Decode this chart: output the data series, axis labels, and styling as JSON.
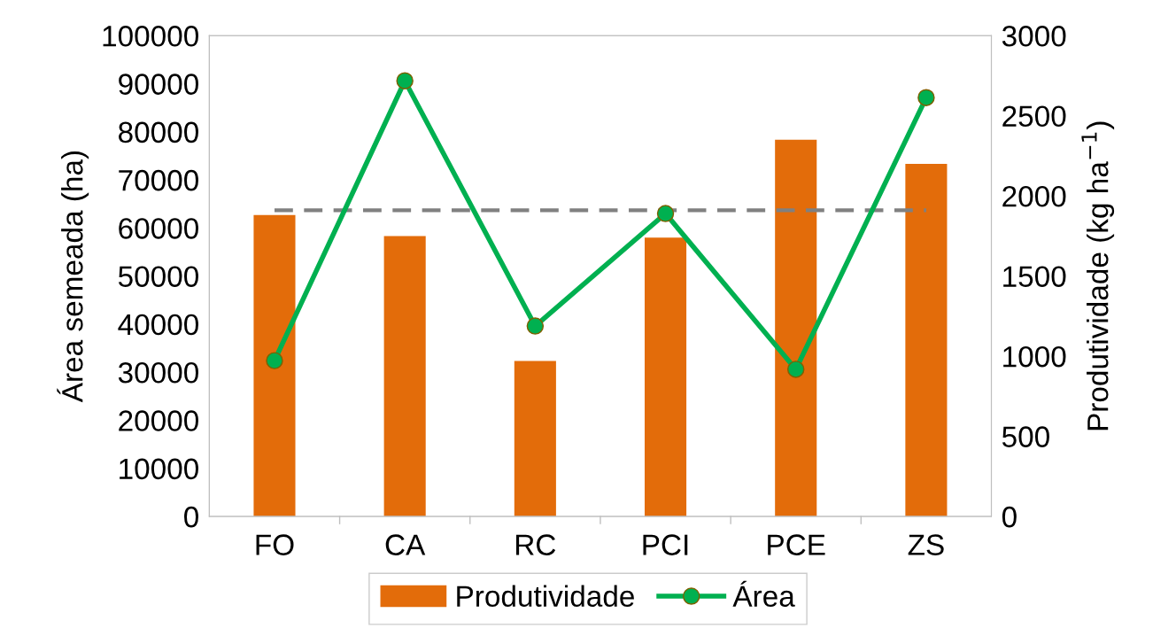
{
  "chart_data": {
    "type": "bar",
    "categories": [
      "FO",
      "CA",
      "RC",
      "PCI",
      "PCE",
      "ZS"
    ],
    "ylabel": "Área semeada (ha)",
    "y2label": "Produtividade (kg ha$^{−1}$)",
    "ylim": [
      0,
      100000
    ],
    "yticks": [
      0,
      10000,
      20000,
      30000,
      40000,
      50000,
      60000,
      70000,
      80000,
      90000,
      100000
    ],
    "y2lim": [
      0,
      3000
    ],
    "y2ticks": [
      0,
      500,
      1000,
      1500,
      2000,
      2500,
      3000
    ],
    "series": [
      {
        "name": "Produtividade",
        "axis": "y2",
        "color": "#e36c0a",
        "values": [
          1880,
          1750,
          970,
          1740,
          2350,
          2200
        ]
      },
      {
        "name": "Área",
        "type": "line",
        "axis": "y",
        "color": "#00b050",
        "marker": "circle",
        "values": [
          32400,
          90600,
          39600,
          63000,
          30600,
          87100
        ]
      }
    ],
    "ref_lines": [
      {
        "axis": "y2",
        "value": 1910,
        "color": "#808080",
        "line_style": "dashed"
      }
    ],
    "grid": false,
    "legend": "bottom"
  }
}
